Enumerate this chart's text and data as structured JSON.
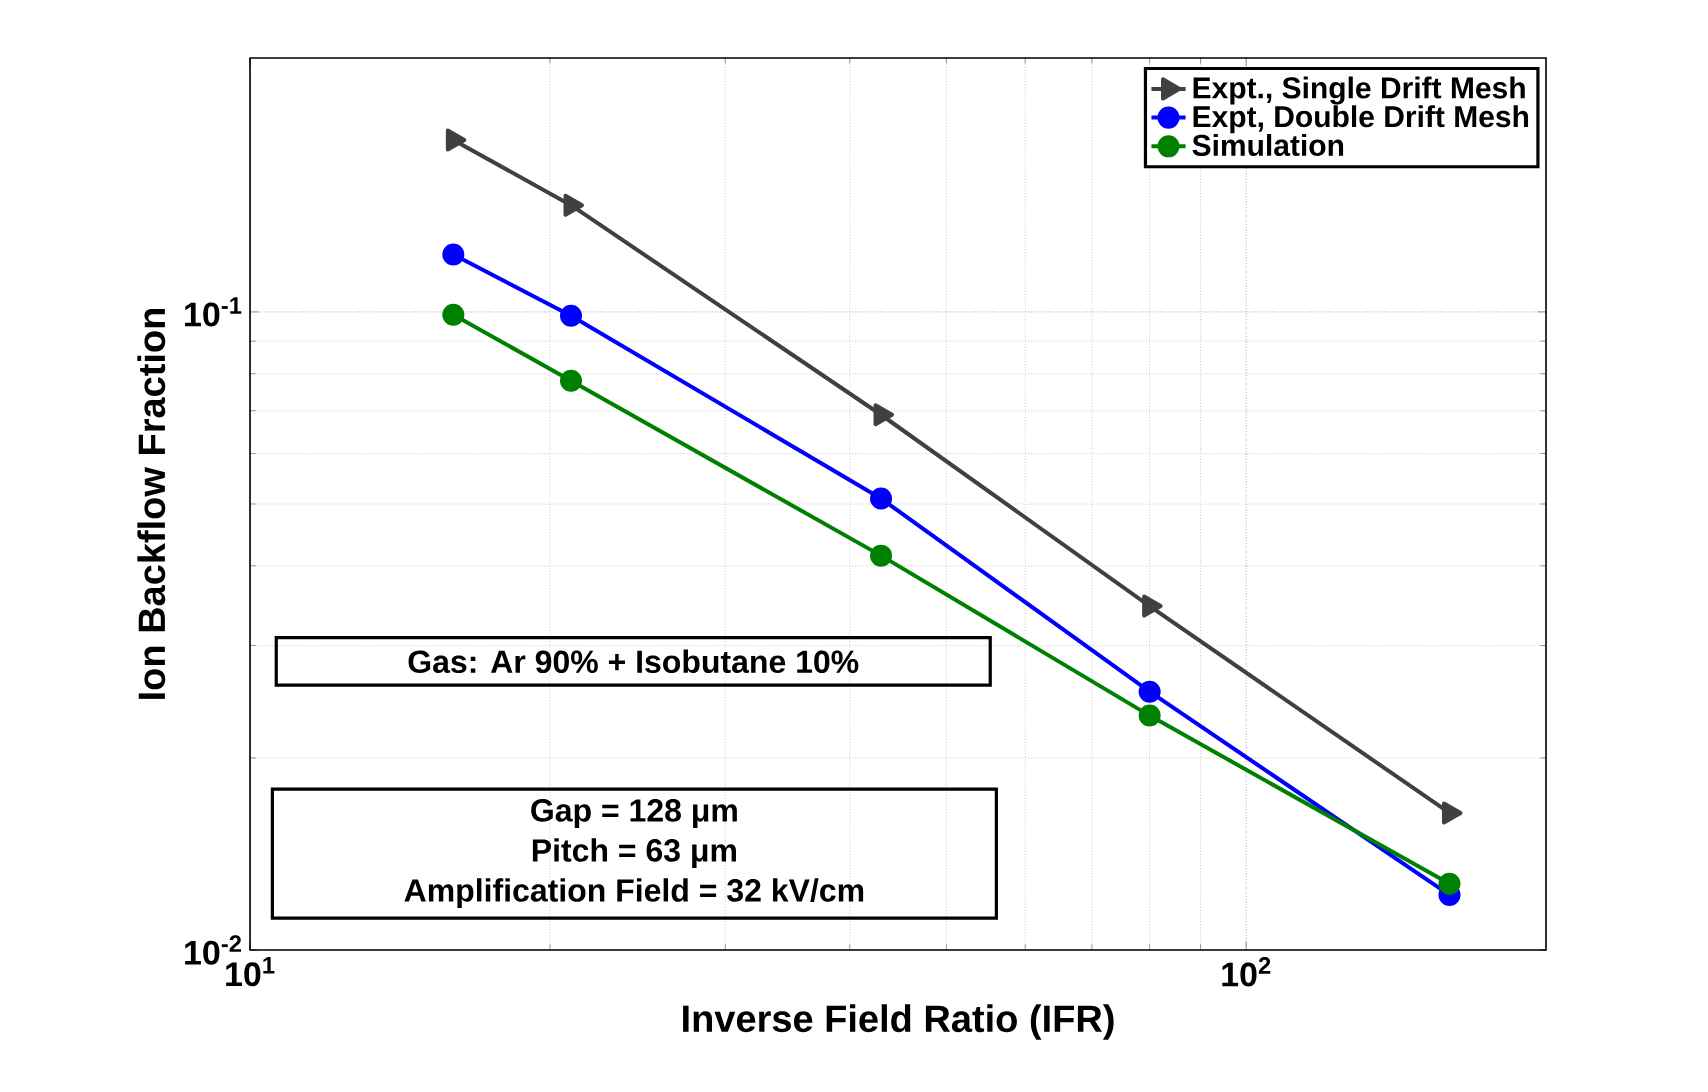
{
  "chart_data": {
    "type": "line",
    "xlabel": "Inverse Field Ratio (IFR)",
    "ylabel": "Ion Backflow Fraction",
    "log": "xy",
    "xlim": [
      10,
      200
    ],
    "ylim": [
      0.01,
      0.25
    ],
    "xticks": [
      {
        "value": 10,
        "label": "10$^{1}$"
      },
      {
        "value": 100,
        "label": "10$^{2}$"
      }
    ],
    "yticks": [
      {
        "value": 0.01,
        "label": "10$^{-2}$"
      },
      {
        "value": 0.1,
        "label": "10$^{-1}$"
      }
    ],
    "x": [
      16,
      21,
      43,
      80,
      160
    ],
    "series": [
      {
        "name": "Expt., Single Drift Mesh",
        "color": "#404040",
        "marker": "triangle",
        "values": [
          0.186,
          0.147,
          0.069,
          0.0346,
          0.0164
        ]
      },
      {
        "name": "Expt, Double Drift Mesh",
        "color": "#0000ff",
        "marker": "circle",
        "values": [
          0.123,
          0.0986,
          0.051,
          0.0254,
          0.0122
        ]
      },
      {
        "name": "Simulation",
        "color": "#008000",
        "marker": "circle",
        "values": [
          0.099,
          0.078,
          0.0415,
          0.0233,
          0.0127
        ]
      }
    ],
    "grid": true,
    "legend": "top right",
    "annotations": [
      "Gas: Ar 90% + Isobutane 10%",
      "Gap = 128 μm",
      "Pitch = 63 μm",
      "Amplification Field = 32 kV/cm"
    ]
  }
}
